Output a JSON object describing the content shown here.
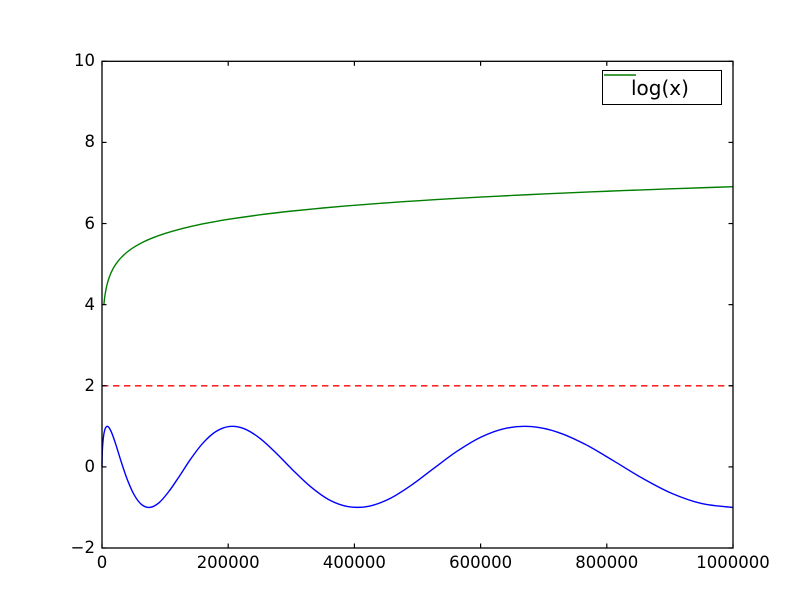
{
  "figure": {
    "background": "#ffffff",
    "axes_frame_color": "#000000"
  },
  "legend": {
    "position": "upper right",
    "entries": [
      {
        "label": "log(x)",
        "color": "#007f00",
        "line_style": "solid"
      }
    ]
  },
  "chart_data": {
    "type": "line",
    "title": "",
    "xlabel": "",
    "ylabel": "",
    "xlim": [
      0,
      1000000
    ],
    "ylim": [
      -2,
      10
    ],
    "grid": false,
    "legend_position": "upper right",
    "x_ticks": {
      "values": [
        0,
        200000,
        400000,
        600000,
        800000,
        1000000
      ],
      "labels": [
        "0",
        "200000",
        "400000",
        "600000",
        "800000",
        "1000000"
      ]
    },
    "y_ticks": {
      "values": [
        -2,
        0,
        2,
        4,
        6,
        8,
        10
      ],
      "labels": [
        "−2",
        "0",
        "2",
        "4",
        "6",
        "8",
        "10"
      ]
    },
    "series": [
      {
        "id": "log-curve",
        "legend_label": "log(x)",
        "color": "#007f00",
        "line_style": "solid",
        "description": "y = 0.5*ln(x); rises steeply from ~4.0 near x=0 to 6.91 at x=1000000",
        "points": [
          [
            3000,
            4.003
          ],
          [
            4000,
            4.147
          ],
          [
            5000,
            4.259
          ],
          [
            6500,
            4.39
          ],
          [
            8000,
            4.494
          ],
          [
            10000,
            4.605
          ],
          [
            13000,
            4.736
          ],
          [
            16000,
            4.84
          ],
          [
            20000,
            4.952
          ],
          [
            25000,
            5.063
          ],
          [
            30000,
            5.155
          ],
          [
            40000,
            5.298
          ],
          [
            50000,
            5.41
          ],
          [
            65000,
            5.541
          ],
          [
            80000,
            5.645
          ],
          [
            100000,
            5.756
          ],
          [
            125000,
            5.868
          ],
          [
            150000,
            5.959
          ],
          [
            175000,
            6.036
          ],
          [
            200000,
            6.103
          ],
          [
            250000,
            6.214
          ],
          [
            300000,
            6.306
          ],
          [
            350000,
            6.383
          ],
          [
            400000,
            6.45
          ],
          [
            450000,
            6.509
          ],
          [
            500000,
            6.561
          ],
          [
            550000,
            6.609
          ],
          [
            600000,
            6.652
          ],
          [
            650000,
            6.692
          ],
          [
            700000,
            6.729
          ],
          [
            750000,
            6.764
          ],
          [
            800000,
            6.796
          ],
          [
            850000,
            6.826
          ],
          [
            900000,
            6.855
          ],
          [
            950000,
            6.882
          ],
          [
            1000000,
            6.908
          ]
        ]
      },
      {
        "id": "sine-curve",
        "legend_label": null,
        "color": "#0000ff",
        "line_style": "solid",
        "description": "oscillates between -1 and 1, period uniform in sqrt(x); maxima near x=8000, 203000, 669000; minima near x=75000, 405000, 1000000",
        "points": [
          [
            0,
            0.0
          ],
          [
            625,
            0.419
          ],
          [
            2500,
            0.761
          ],
          [
            5625,
            0.963
          ],
          [
            10000,
            0.988
          ],
          [
            15625,
            0.831
          ],
          [
            22500,
            0.523
          ],
          [
            30625,
            0.117
          ],
          [
            40000,
            -0.309
          ],
          [
            50625,
            -0.679
          ],
          [
            62500,
            -0.925
          ],
          [
            75625,
            -0.999
          ],
          [
            90000,
            -0.889
          ],
          [
            105625,
            -0.613
          ],
          [
            122500,
            -0.233
          ],
          [
            140625,
            0.196
          ],
          [
            160000,
            0.588
          ],
          [
            180625,
            0.872
          ],
          [
            202500,
            0.997
          ],
          [
            225625,
            0.939
          ],
          [
            250000,
            0.707
          ],
          [
            275625,
            0.345
          ],
          [
            302500,
            -0.079
          ],
          [
            330625,
            -0.489
          ],
          [
            360000,
            -0.813
          ],
          [
            390625,
            -0.981
          ],
          [
            422500,
            -0.971
          ],
          [
            455625,
            -0.786
          ],
          [
            490000,
            -0.454
          ],
          [
            525625,
            -0.039
          ],
          [
            562500,
            0.383
          ],
          [
            600625,
            0.734
          ],
          [
            640000,
            0.951
          ],
          [
            680625,
            0.993
          ],
          [
            722500,
            0.853
          ],
          [
            765625,
            0.557
          ],
          [
            810000,
            0.156
          ],
          [
            855625,
            -0.272
          ],
          [
            902500,
            -0.65
          ],
          [
            950625,
            -0.905
          ],
          [
            1000000,
            -1.0
          ]
        ]
      },
      {
        "id": "threshold-line",
        "legend_label": null,
        "color": "#ff0000",
        "line_style": "dashed",
        "description": "horizontal dashed line at y = 2 across full x-range",
        "points": [
          [
            0,
            2
          ],
          [
            1000000,
            2
          ]
        ]
      }
    ]
  }
}
